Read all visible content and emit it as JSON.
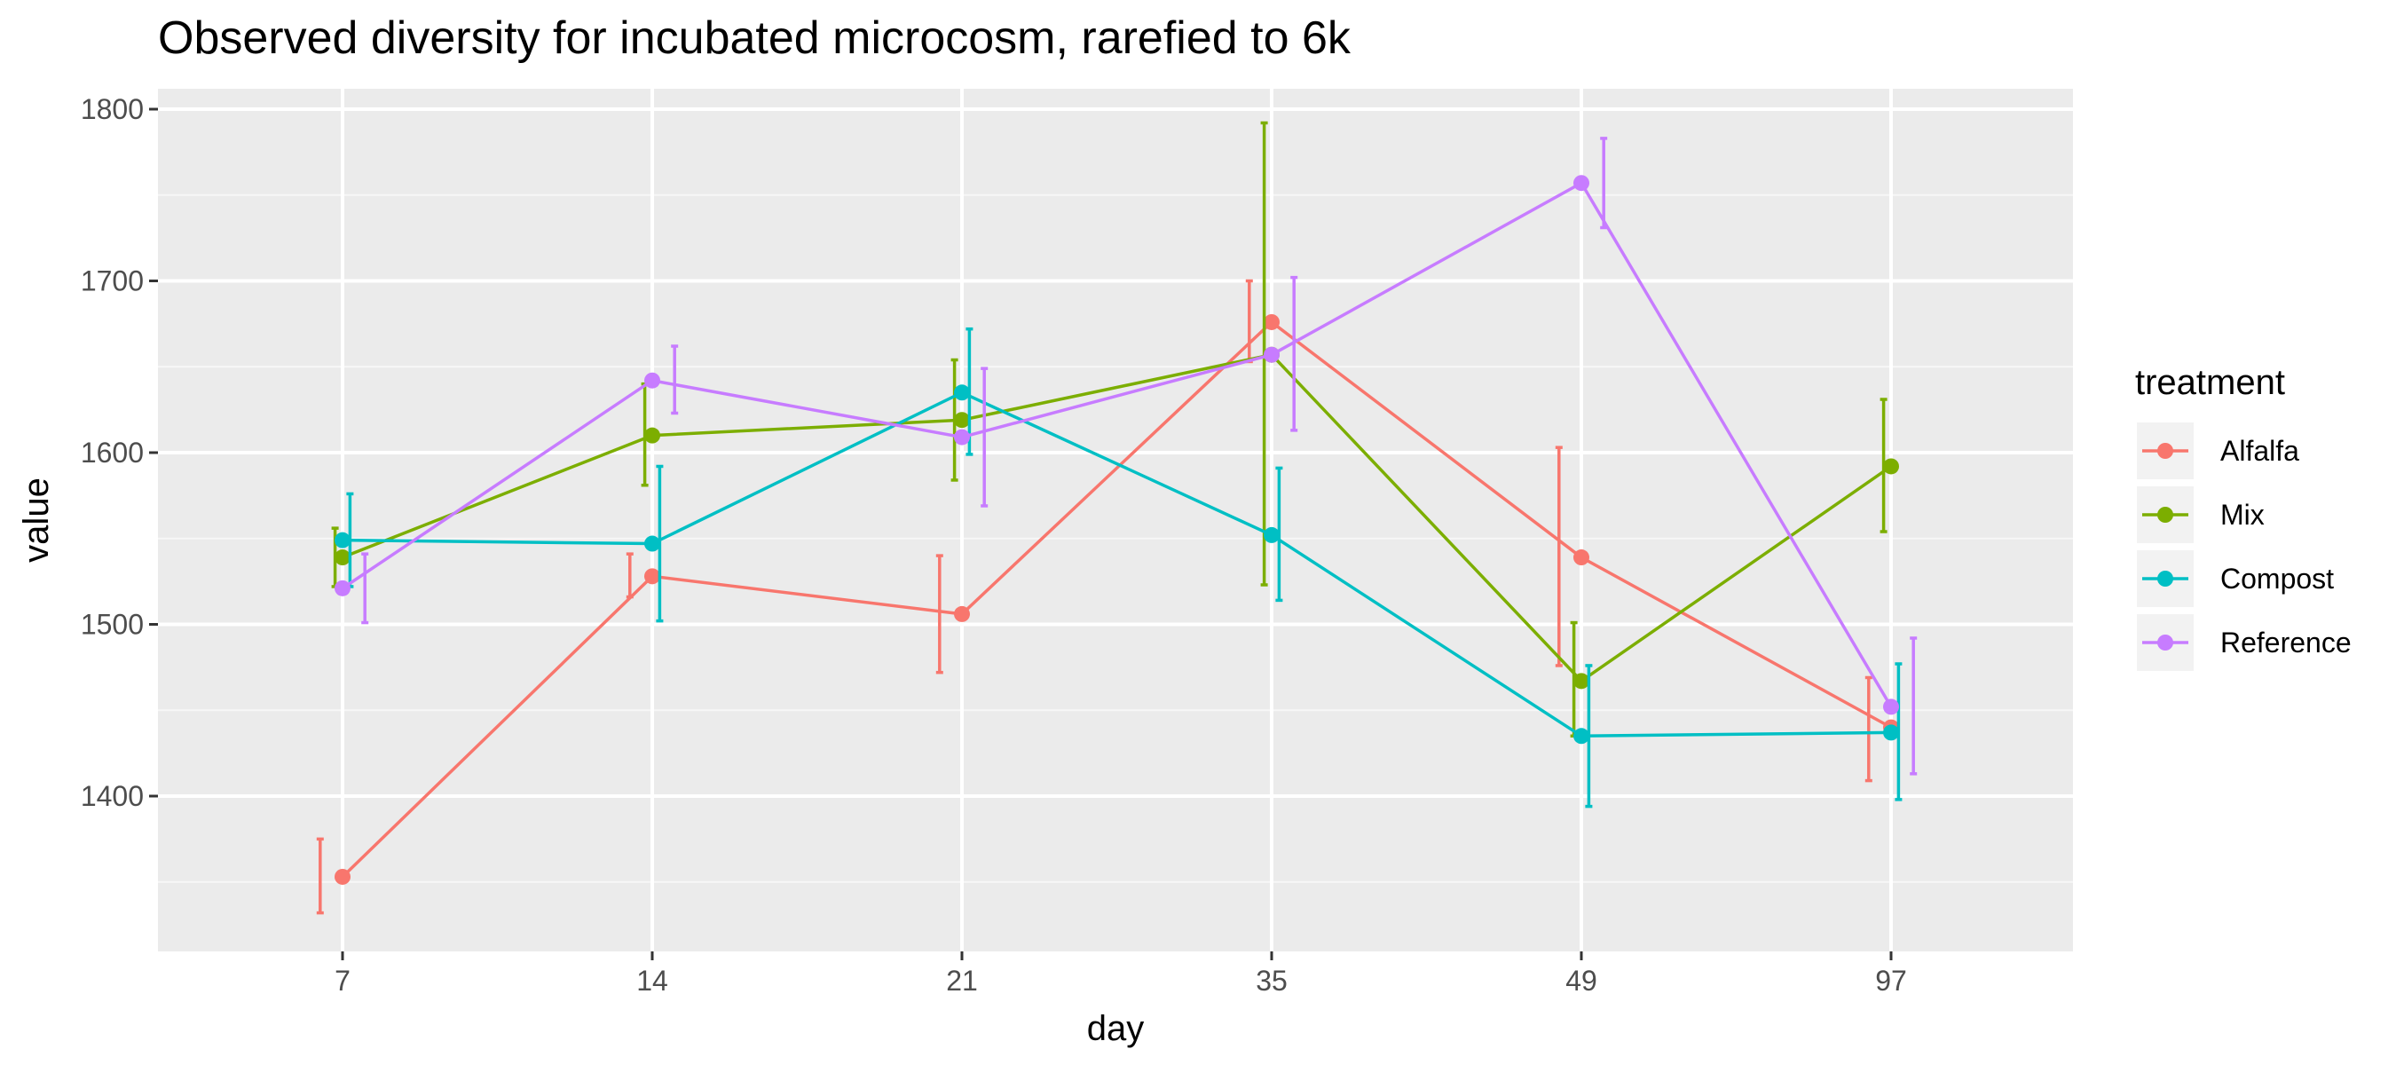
{
  "chart_data": {
    "type": "line",
    "title": "Observed diversity for incubated microcosm, rarefied to 6k",
    "xlabel": "day",
    "ylabel": "value",
    "categories": [
      "7",
      "14",
      "21",
      "35",
      "49",
      "97"
    ],
    "ylim": [
      1310,
      1800
    ],
    "yticks": [
      1400,
      1500,
      1600,
      1700,
      1800
    ],
    "grid": true,
    "legend": {
      "title": "treatment",
      "position": "right"
    },
    "series": [
      {
        "name": "Alfalfa",
        "color": "#F8766D",
        "values": [
          1353,
          1528,
          1506,
          1676,
          1539,
          1440
        ],
        "errors": [
          [
            1332,
            1375
          ],
          [
            1516,
            1541
          ],
          [
            1472,
            1540
          ],
          [
            1653,
            1700
          ],
          [
            1476,
            1603
          ],
          [
            1409,
            1469
          ]
        ]
      },
      {
        "name": "Mix",
        "color": "#7CAE00",
        "values": [
          1539,
          1610,
          1619,
          1657,
          1467,
          1592
        ],
        "errors": [
          [
            1522,
            1556
          ],
          [
            1581,
            1640
          ],
          [
            1584,
            1654
          ],
          [
            1523,
            1792
          ],
          [
            1435,
            1501
          ],
          [
            1554,
            1631
          ]
        ]
      },
      {
        "name": "Compost",
        "color": "#00BFC4",
        "values": [
          1549,
          1547,
          1635,
          1552,
          1435,
          1437
        ],
        "errors": [
          [
            1522,
            1576
          ],
          [
            1502,
            1592
          ],
          [
            1599,
            1672
          ],
          [
            1514,
            1591
          ],
          [
            1394,
            1476
          ],
          [
            1398,
            1477
          ]
        ]
      },
      {
        "name": "Reference",
        "color": "#C77CFF",
        "values": [
          1521,
          1642,
          1609,
          1657,
          1757,
          1452
        ],
        "errors": [
          [
            1501,
            1541
          ],
          [
            1623,
            1662
          ],
          [
            1569,
            1649
          ],
          [
            1613,
            1702
          ],
          [
            1731,
            1783
          ],
          [
            1413,
            1492
          ]
        ]
      }
    ]
  }
}
